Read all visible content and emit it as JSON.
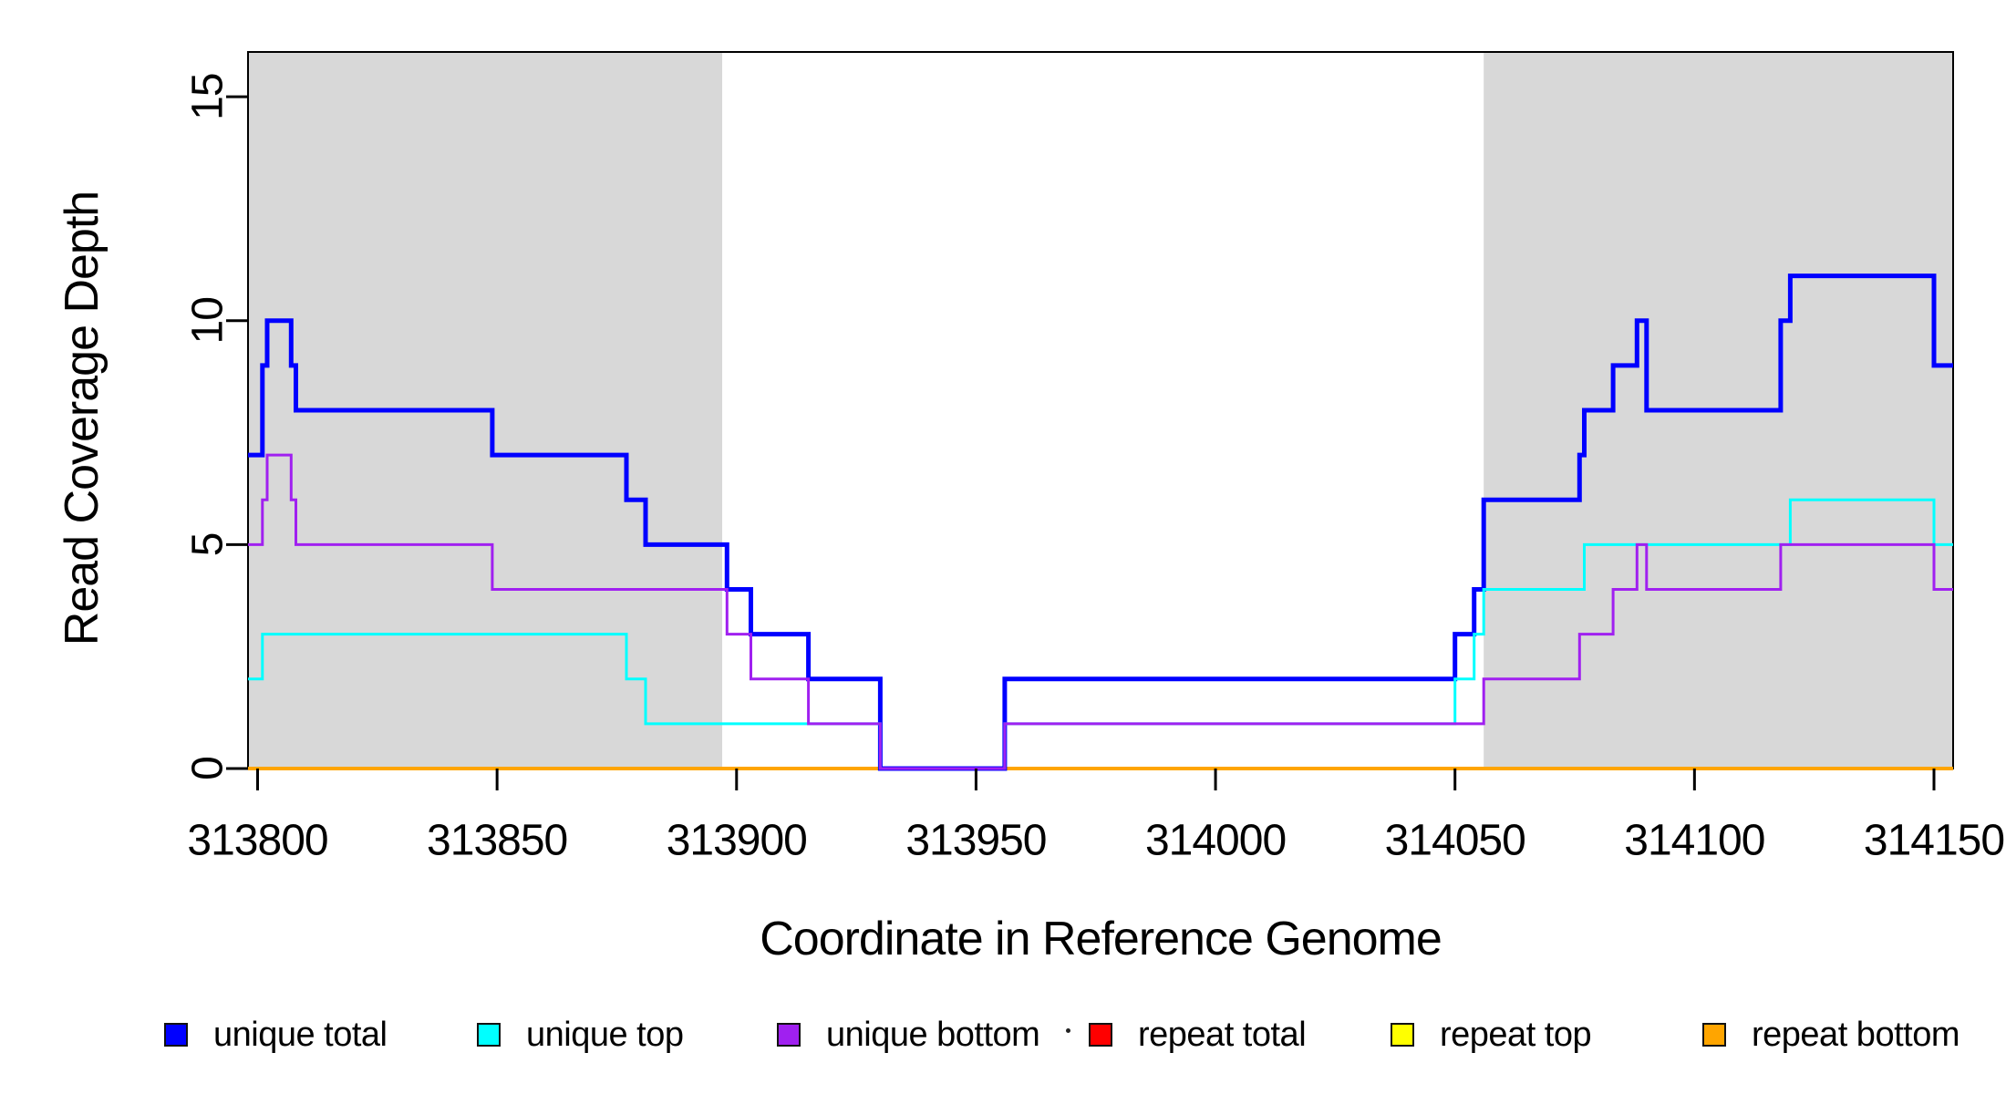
{
  "chart_data": {
    "type": "line",
    "subtype": "step",
    "title": "",
    "xlabel": "Coordinate in Reference Genome",
    "ylabel": "Read Coverage Depth",
    "xlim": [
      313798,
      314154
    ],
    "ylim": [
      0,
      16
    ],
    "x_ticks": [
      313800,
      313850,
      313900,
      313950,
      314000,
      314050,
      314100,
      314150
    ],
    "y_ticks": [
      0,
      5,
      10,
      15
    ],
    "grid": false,
    "legend_position": "bottom",
    "background_color": "#FFFFFF",
    "highlight_color": "#D8D8D8",
    "highlight_regions": [
      {
        "name": "left-shaded-region",
        "from": 313798,
        "to": 313897
      },
      {
        "name": "right-shaded-region",
        "from": 314056,
        "to": 314154
      }
    ],
    "series_end_x": 314154,
    "series": [
      {
        "name": "repeat total",
        "color": "#FF0000",
        "line_width": 4,
        "steps": [
          [
            313798,
            0
          ]
        ]
      },
      {
        "name": "repeat top",
        "color": "#FFFF00",
        "line_width": 4,
        "steps": [
          [
            313798,
            0
          ]
        ]
      },
      {
        "name": "repeat bottom",
        "color": "#FFA500",
        "line_width": 4,
        "steps": [
          [
            313798,
            0
          ]
        ]
      },
      {
        "name": "unique total",
        "color": "#0000FF",
        "line_width": 5,
        "steps": [
          [
            313798,
            7
          ],
          [
            313801,
            9
          ],
          [
            313802,
            10
          ],
          [
            313807,
            9
          ],
          [
            313808,
            8
          ],
          [
            313849,
            7
          ],
          [
            313877,
            6
          ],
          [
            313881,
            5
          ],
          [
            313898,
            4
          ],
          [
            313903,
            3
          ],
          [
            313915,
            2
          ],
          [
            313930,
            0
          ],
          [
            313956,
            2
          ],
          [
            314050,
            3
          ],
          [
            314054,
            4
          ],
          [
            314056,
            6
          ],
          [
            314076,
            7
          ],
          [
            314077,
            8
          ],
          [
            314083,
            9
          ],
          [
            314088,
            10
          ],
          [
            314090,
            8
          ],
          [
            314118,
            10
          ],
          [
            314120,
            11
          ],
          [
            314150,
            9
          ]
        ]
      },
      {
        "name": "unique top",
        "color": "#00FFFF",
        "line_width": 3,
        "steps": [
          [
            313798,
            2
          ],
          [
            313801,
            3
          ],
          [
            313877,
            2
          ],
          [
            313881,
            1
          ],
          [
            313930,
            0
          ],
          [
            313956,
            1
          ],
          [
            314050,
            2
          ],
          [
            314054,
            3
          ],
          [
            314056,
            4
          ],
          [
            314077,
            5
          ],
          [
            314120,
            6
          ],
          [
            314150,
            5
          ]
        ]
      },
      {
        "name": "unique bottom",
        "color": "#A020F0",
        "line_width": 3,
        "steps": [
          [
            313798,
            5
          ],
          [
            313801,
            6
          ],
          [
            313802,
            7
          ],
          [
            313807,
            6
          ],
          [
            313808,
            5
          ],
          [
            313849,
            4
          ],
          [
            313898,
            3
          ],
          [
            313903,
            2
          ],
          [
            313915,
            1
          ],
          [
            313930,
            0
          ],
          [
            313956,
            1
          ],
          [
            314056,
            2
          ],
          [
            314076,
            3
          ],
          [
            314083,
            4
          ],
          [
            314088,
            5
          ],
          [
            314090,
            4
          ],
          [
            314118,
            5
          ],
          [
            314150,
            4
          ]
        ]
      }
    ]
  },
  "legend": {
    "items": [
      {
        "label": "unique total",
        "color": "#0000FF"
      },
      {
        "label": "unique top",
        "color": "#00FFFF"
      },
      {
        "label": "unique bottom",
        "color": "#A020F0"
      },
      {
        "label": "repeat total",
        "color": "#FF0000"
      },
      {
        "label": "repeat top",
        "color": "#FFFF00"
      },
      {
        "label": "repeat bottom",
        "color": "#FFA500"
      }
    ]
  },
  "annotations": {
    "stray_dot_glyph": "·"
  }
}
